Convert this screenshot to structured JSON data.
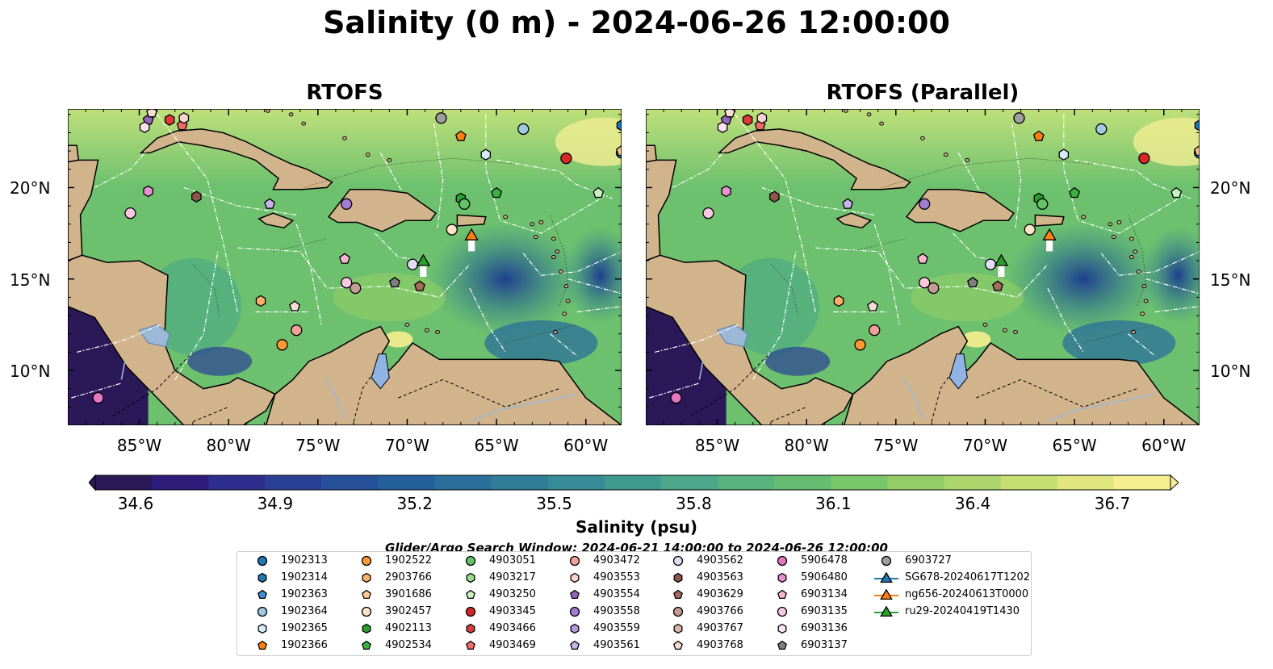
{
  "title": "Salinity (0 m) - 2024-06-26 12:00:00",
  "panels": [
    {
      "title": "RTOFS"
    },
    {
      "title": "RTOFS (Parallel)"
    }
  ],
  "lat_ticks": [
    "20°N",
    "15°N",
    "10°N"
  ],
  "lon_ticks": [
    "85°W",
    "80°W",
    "75°W",
    "70°W",
    "65°W",
    "60°W"
  ],
  "colorbar": {
    "label": "Salinity (psu)",
    "ticks": [
      "34.6",
      "34.9",
      "35.2",
      "35.5",
      "35.8",
      "36.1",
      "36.4",
      "36.7"
    ],
    "colors": [
      "#2a1858",
      "#2f1c7a",
      "#2d2e8d",
      "#2a4096",
      "#26519a",
      "#23609b",
      "#2a6f9b",
      "#2e7d99",
      "#358c96",
      "#3f9a90",
      "#4ca78a",
      "#58b37f",
      "#66bd72",
      "#7ac66a",
      "#93ce68",
      "#acd66c",
      "#c8df73",
      "#e2e67e",
      "#f7ee8f"
    ]
  },
  "search_window": "Glider/Argo Search Window: 2024-06-21 14:00:00 to 2024-06-26 12:00:00",
  "legend": [
    {
      "label": "1902313",
      "color": "#1f77b4",
      "shape": "circle"
    },
    {
      "label": "1902314",
      "color": "#1f77b4",
      "shape": "hexagon"
    },
    {
      "label": "1902363",
      "color": "#3d8fd6",
      "shape": "pentagon"
    },
    {
      "label": "1902364",
      "color": "#9ecae1",
      "shape": "circle"
    },
    {
      "label": "1902365",
      "color": "#d6ecfa",
      "shape": "hexagon"
    },
    {
      "label": "1902366",
      "color": "#ff7f0e",
      "shape": "pentagon"
    },
    {
      "label": "1902522",
      "color": "#ff9933",
      "shape": "circle"
    },
    {
      "label": "2903766",
      "color": "#ffae6b",
      "shape": "hexagon"
    },
    {
      "label": "3901686",
      "color": "#ffc894",
      "shape": "pentagon"
    },
    {
      "label": "3902457",
      "color": "#ffe3c6",
      "shape": "circle"
    },
    {
      "label": "4902113",
      "color": "#2ca02c",
      "shape": "hexagon"
    },
    {
      "label": "4902534",
      "color": "#3cb043",
      "shape": "pentagon"
    },
    {
      "label": "4903051",
      "color": "#66c266",
      "shape": "circle"
    },
    {
      "label": "4903217",
      "color": "#98df8a",
      "shape": "hexagon"
    },
    {
      "label": "4903250",
      "color": "#c9f0c0",
      "shape": "pentagon"
    },
    {
      "label": "4903345",
      "color": "#d62728",
      "shape": "circle"
    },
    {
      "label": "4903466",
      "color": "#e0393b",
      "shape": "hexagon"
    },
    {
      "label": "4903469",
      "color": "#f06a6a",
      "shape": "pentagon"
    },
    {
      "label": "4903472",
      "color": "#f4a09a",
      "shape": "circle"
    },
    {
      "label": "4903553",
      "color": "#fcd3cf",
      "shape": "hexagon"
    },
    {
      "label": "4903554",
      "color": "#9467bd",
      "shape": "pentagon"
    },
    {
      "label": "4903558",
      "color": "#a17cd1",
      "shape": "circle"
    },
    {
      "label": "4903559",
      "color": "#b499de",
      "shape": "hexagon"
    },
    {
      "label": "4903561",
      "color": "#c8b4ec",
      "shape": "pentagon"
    },
    {
      "label": "4903562",
      "color": "#e6dbf7",
      "shape": "circle"
    },
    {
      "label": "4903563",
      "color": "#8c564b",
      "shape": "hexagon"
    },
    {
      "label": "4903629",
      "color": "#a36a5d",
      "shape": "pentagon"
    },
    {
      "label": "4903766",
      "color": "#c49c94",
      "shape": "circle"
    },
    {
      "label": "4903767",
      "color": "#ddb4a8",
      "shape": "hexagon"
    },
    {
      "label": "4903768",
      "color": "#f5ddd3",
      "shape": "pentagon"
    },
    {
      "label": "5906478",
      "color": "#e377c2",
      "shape": "circle"
    },
    {
      "label": "5906480",
      "color": "#ea8fd0",
      "shape": "hexagon"
    },
    {
      "label": "6903134",
      "color": "#f7b6d2",
      "shape": "pentagon"
    },
    {
      "label": "6903135",
      "color": "#fbc8e2",
      "shape": "circle"
    },
    {
      "label": "6903136",
      "color": "#fde3f2",
      "shape": "hexagon"
    },
    {
      "label": "6903137",
      "color": "#7f7f7f",
      "shape": "pentagon"
    },
    {
      "label": "6903727",
      "color": "#9e9e9e",
      "shape": "circle"
    },
    {
      "label": "SG678-20240617T1202",
      "color": "#1f77b4",
      "shape": "triangle-line"
    },
    {
      "label": "ng656-20240613T0000",
      "color": "#ff7f0e",
      "shape": "triangle-line"
    },
    {
      "label": "ru29-20240419T1430",
      "color": "#2ca02c",
      "shape": "triangle-line"
    }
  ],
  "floats": [
    {
      "id": "1902313",
      "lon": -58.0,
      "lat": 21.9
    },
    {
      "id": "1902314",
      "lon": -58.0,
      "lat": 23.4
    },
    {
      "id": "1902364",
      "lon": -63.5,
      "lat": 23.2
    },
    {
      "id": "1902365",
      "lon": -65.6,
      "lat": 21.8
    },
    {
      "id": "1902366",
      "lon": -67.0,
      "lat": 22.8
    },
    {
      "id": "1902522",
      "lon": -77.0,
      "lat": 11.4
    },
    {
      "id": "2903766",
      "lon": -78.2,
      "lat": 13.8
    },
    {
      "id": "3901686",
      "lon": -58.0,
      "lat": 22.0
    },
    {
      "id": "3902457",
      "lon": -67.5,
      "lat": 17.7
    },
    {
      "id": "4902113",
      "lon": -67.0,
      "lat": 19.4
    },
    {
      "id": "4902534",
      "lon": -65.0,
      "lat": 19.7
    },
    {
      "id": "4903051",
      "lon": -66.8,
      "lat": 19.1
    },
    {
      "id": "4903250",
      "lon": -59.3,
      "lat": 19.7
    },
    {
      "id": "4903345",
      "lon": -61.1,
      "lat": 21.6
    },
    {
      "id": "4903466",
      "lon": -83.3,
      "lat": 23.7
    },
    {
      "id": "4903469",
      "lon": -82.6,
      "lat": 23.4
    },
    {
      "id": "4903472",
      "lon": -76.2,
      "lat": 12.2
    },
    {
      "id": "4903553",
      "lon": -82.5,
      "lat": 23.8
    },
    {
      "id": "4903554",
      "lon": -84.5,
      "lat": 23.7
    },
    {
      "id": "4903558",
      "lon": -73.4,
      "lat": 19.1
    },
    {
      "id": "4903561",
      "lon": -77.7,
      "lat": 19.1
    },
    {
      "id": "4903562",
      "lon": -69.7,
      "lat": 15.8
    },
    {
      "id": "4903563",
      "lon": -81.8,
      "lat": 19.5
    },
    {
      "id": "4903629",
      "lon": -69.3,
      "lat": 14.6
    },
    {
      "id": "4903766",
      "lon": -72.9,
      "lat": 14.5
    },
    {
      "id": "4903768",
      "lon": -76.3,
      "lat": 13.5
    },
    {
      "id": "5906478",
      "lon": -87.3,
      "lat": 8.5
    },
    {
      "id": "5906480",
      "lon": -84.5,
      "lat": 19.8
    },
    {
      "id": "6903134",
      "lon": -73.5,
      "lat": 16.1
    },
    {
      "id": "6903135",
      "lon": -73.4,
      "lat": 14.8
    },
    {
      "id": "6903136",
      "lon": -84.7,
      "lat": 23.3
    },
    {
      "id": "6903137",
      "lon": -70.7,
      "lat": 14.8
    },
    {
      "id": "6903727",
      "lon": -68.1,
      "lat": 23.8
    },
    {
      "id": "4903768",
      "lon": -84.3,
      "lat": 24.1
    },
    {
      "id": "6903135",
      "lon": -85.5,
      "lat": 18.6
    }
  ],
  "gliders": [
    {
      "id": "ng656-20240613T0000",
      "lon": -66.4,
      "lat": 17.4,
      "color": "#ff7f0e"
    },
    {
      "id": "ru29-20240419T1430",
      "lon": -69.1,
      "lat": 16.0,
      "color": "#2ca02c"
    }
  ]
}
